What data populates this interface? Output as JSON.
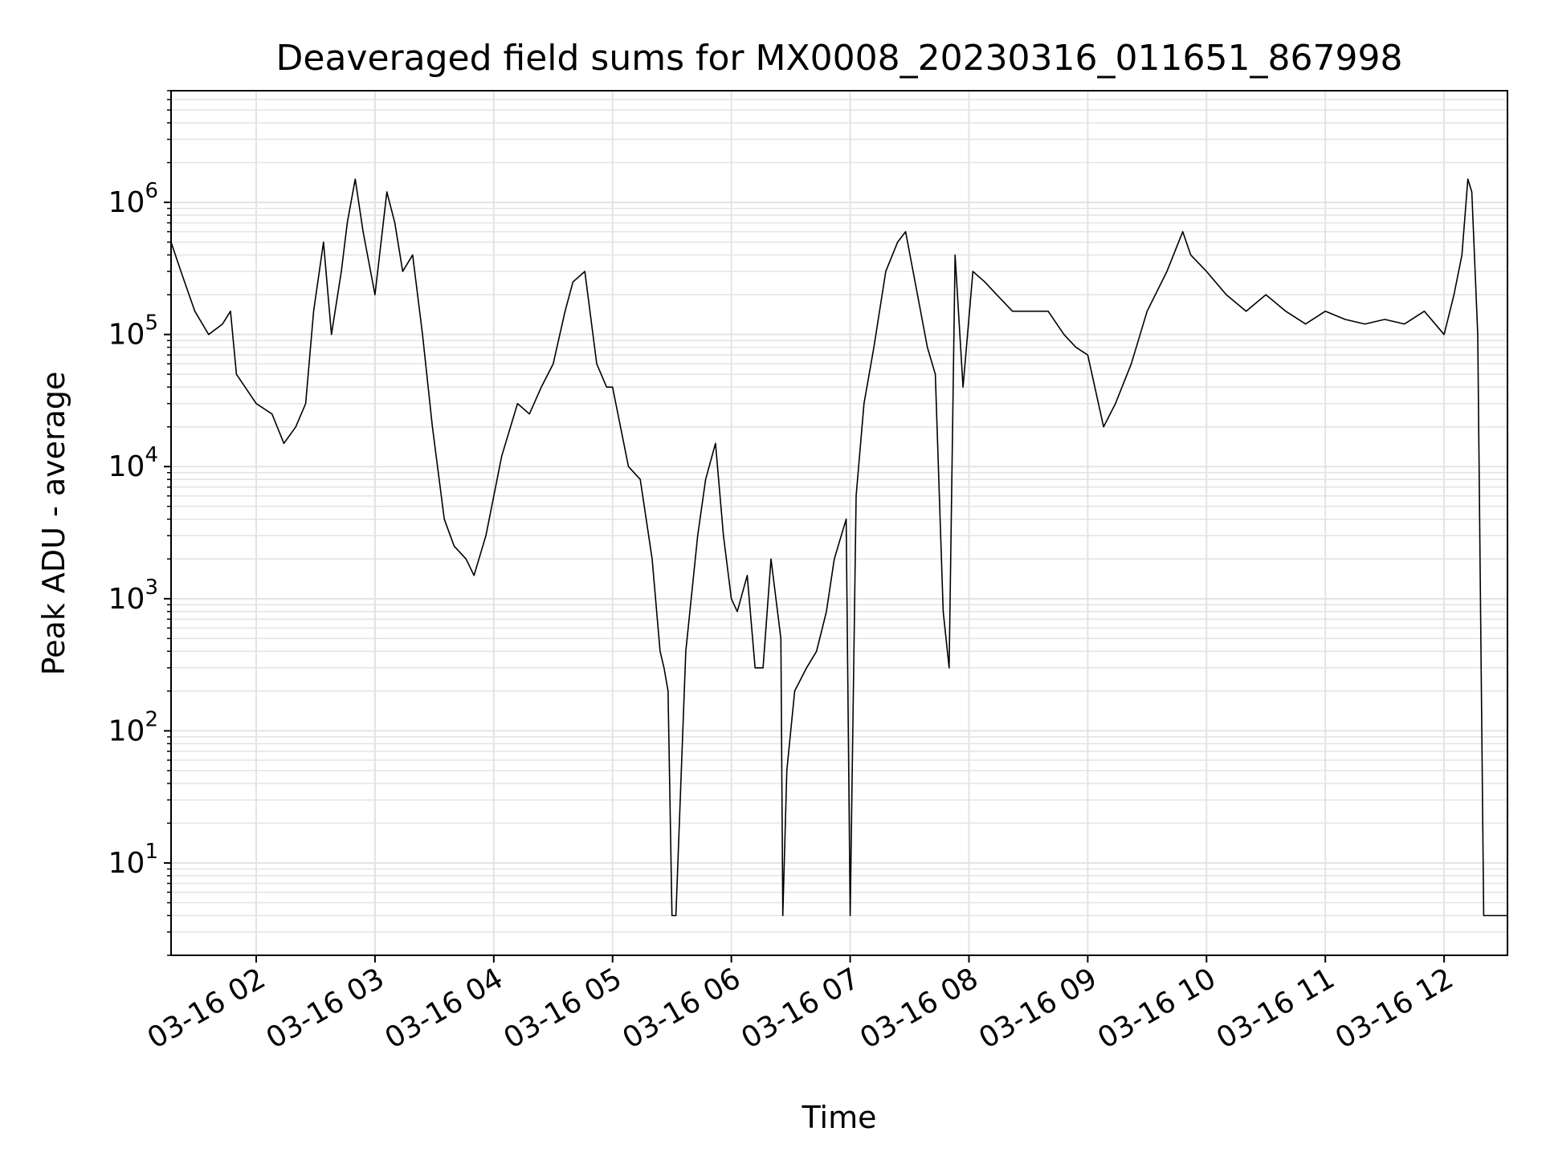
{
  "chart_data": {
    "type": "line",
    "title": "Deaveraged field sums for MX0008_20230316_011651_867998",
    "xlabel": "Time",
    "ylabel": "Peak ADU - average",
    "yscale": "log",
    "xlim": [
      "2023-03-16T01:17",
      "2023-03-16T12:32"
    ],
    "ylim": [
      2,
      7000000.0
    ],
    "grid": true,
    "line_color": "#000000",
    "grid_color": "#e3e3e3",
    "x_ticks": [
      {
        "t": "2023-03-16T02:00",
        "label": "03-16 02"
      },
      {
        "t": "2023-03-16T03:00",
        "label": "03-16 03"
      },
      {
        "t": "2023-03-16T04:00",
        "label": "03-16 04"
      },
      {
        "t": "2023-03-16T05:00",
        "label": "03-16 05"
      },
      {
        "t": "2023-03-16T06:00",
        "label": "03-16 06"
      },
      {
        "t": "2023-03-16T07:00",
        "label": "03-16 07"
      },
      {
        "t": "2023-03-16T08:00",
        "label": "03-16 08"
      },
      {
        "t": "2023-03-16T09:00",
        "label": "03-16 09"
      },
      {
        "t": "2023-03-16T10:00",
        "label": "03-16 10"
      },
      {
        "t": "2023-03-16T11:00",
        "label": "03-16 11"
      },
      {
        "t": "2023-03-16T12:00",
        "label": "03-16 12"
      }
    ],
    "y_ticks": [
      {
        "value": 10,
        "base": "10",
        "exp": "1"
      },
      {
        "value": 100,
        "base": "10",
        "exp": "2"
      },
      {
        "value": 1000,
        "base": "10",
        "exp": "3"
      },
      {
        "value": 10000,
        "base": "10",
        "exp": "4"
      },
      {
        "value": 100000,
        "base": "10",
        "exp": "5"
      },
      {
        "value": 1000000,
        "base": "10",
        "exp": "6"
      }
    ],
    "series": [
      {
        "x": [
          "2023-03-16T01:17",
          "2023-03-16T01:22",
          "2023-03-16T01:29",
          "2023-03-16T01:36",
          "2023-03-16T01:43",
          "2023-03-16T01:47",
          "2023-03-16T01:50",
          "2023-03-16T02:00",
          "2023-03-16T02:08",
          "2023-03-16T02:14",
          "2023-03-16T02:20",
          "2023-03-16T02:25",
          "2023-03-16T02:29",
          "2023-03-16T02:34",
          "2023-03-16T02:38",
          "2023-03-16T02:43",
          "2023-03-16T02:46",
          "2023-03-16T02:50",
          "2023-03-16T02:54",
          "2023-03-16T03:00",
          "2023-03-16T03:06",
          "2023-03-16T03:10",
          "2023-03-16T03:14",
          "2023-03-16T03:19",
          "2023-03-16T03:24",
          "2023-03-16T03:29",
          "2023-03-16T03:35",
          "2023-03-16T03:40",
          "2023-03-16T03:46",
          "2023-03-16T03:50",
          "2023-03-16T03:56",
          "2023-03-16T04:04",
          "2023-03-16T04:12",
          "2023-03-16T04:18",
          "2023-03-16T04:24",
          "2023-03-16T04:30",
          "2023-03-16T04:36",
          "2023-03-16T04:40",
          "2023-03-16T04:46",
          "2023-03-16T04:52",
          "2023-03-16T04:57",
          "2023-03-16T05:00",
          "2023-03-16T05:08",
          "2023-03-16T05:14",
          "2023-03-16T05:20",
          "2023-03-16T05:24",
          "2023-03-16T05:26",
          "2023-03-16T05:28",
          "2023-03-16T05:30",
          "2023-03-16T05:32",
          "2023-03-16T05:37",
          "2023-03-16T05:43",
          "2023-03-16T05:47",
          "2023-03-16T05:52",
          "2023-03-16T05:56",
          "2023-03-16T06:00",
          "2023-03-16T06:03",
          "2023-03-16T06:08",
          "2023-03-16T06:12",
          "2023-03-16T06:16",
          "2023-03-16T06:20",
          "2023-03-16T06:25",
          "2023-03-16T06:26",
          "2023-03-16T06:28",
          "2023-03-16T06:32",
          "2023-03-16T06:38",
          "2023-03-16T06:43",
          "2023-03-16T06:48",
          "2023-03-16T06:52",
          "2023-03-16T06:58",
          "2023-03-16T07:00",
          "2023-03-16T07:03",
          "2023-03-16T07:07",
          "2023-03-16T07:12",
          "2023-03-16T07:18",
          "2023-03-16T07:24",
          "2023-03-16T07:28",
          "2023-03-16T07:34",
          "2023-03-16T07:39",
          "2023-03-16T07:43",
          "2023-03-16T07:47",
          "2023-03-16T07:50",
          "2023-03-16T07:53",
          "2023-03-16T07:57",
          "2023-03-16T08:02",
          "2023-03-16T08:08",
          "2023-03-16T08:14",
          "2023-03-16T08:22",
          "2023-03-16T08:30",
          "2023-03-16T08:40",
          "2023-03-16T08:48",
          "2023-03-16T08:54",
          "2023-03-16T09:00",
          "2023-03-16T09:08",
          "2023-03-16T09:14",
          "2023-03-16T09:22",
          "2023-03-16T09:30",
          "2023-03-16T09:40",
          "2023-03-16T09:48",
          "2023-03-16T09:52",
          "2023-03-16T10:00",
          "2023-03-16T10:10",
          "2023-03-16T10:20",
          "2023-03-16T10:30",
          "2023-03-16T10:40",
          "2023-03-16T10:50",
          "2023-03-16T11:00",
          "2023-03-16T11:10",
          "2023-03-16T11:20",
          "2023-03-16T11:30",
          "2023-03-16T11:40",
          "2023-03-16T11:50",
          "2023-03-16T12:00",
          "2023-03-16T12:05",
          "2023-03-16T12:09",
          "2023-03-16T12:12",
          "2023-03-16T12:14",
          "2023-03-16T12:17",
          "2023-03-16T12:20",
          "2023-03-16T12:32"
        ],
        "y": [
          500000,
          300000,
          150000,
          100000,
          120000,
          150000,
          50000,
          30000,
          25000,
          15000,
          20000,
          30000,
          150000,
          500000,
          100000,
          300000,
          700000,
          1500000,
          600000,
          200000,
          1200000,
          700000,
          300000,
          400000,
          100000,
          20000,
          4000,
          2500,
          2000,
          1500,
          3000,
          12000,
          30000,
          25000,
          40000,
          60000,
          150000,
          250000,
          300000,
          60000,
          40000,
          40000,
          10000,
          8000,
          2000,
          400,
          300,
          200,
          4,
          4,
          400,
          3000,
          8000,
          15000,
          3000,
          1000,
          800,
          1500,
          300,
          300,
          2000,
          500,
          4,
          50,
          200,
          300,
          400,
          800,
          2000,
          4000,
          4,
          6000,
          30000,
          80000,
          300000,
          500000,
          600000,
          200000,
          80000,
          50000,
          800,
          300,
          400000,
          40000,
          300000,
          250000,
          200000,
          150000,
          150000,
          150000,
          100000,
          80000,
          70000,
          20000,
          30000,
          60000,
          150000,
          300000,
          600000,
          400000,
          300000,
          200000,
          150000,
          200000,
          150000,
          120000,
          150000,
          130000,
          120000,
          130000,
          120000,
          150000,
          100000,
          200000,
          400000,
          1500000,
          1200000,
          100000,
          4,
          4
        ]
      }
    ]
  }
}
